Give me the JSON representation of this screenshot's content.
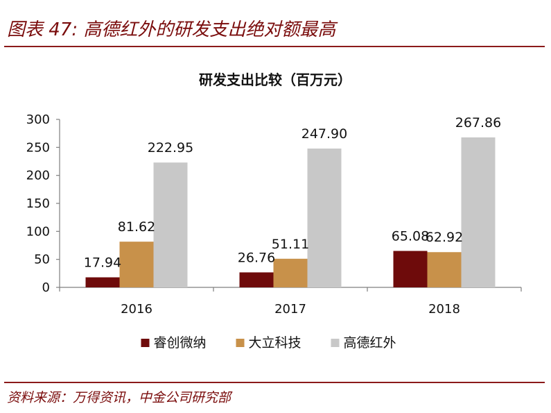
{
  "figure": {
    "title": "图表 47:  高德红外的研发支出绝对额最高",
    "source": "资料来源：万得资讯，中金公司研究部"
  },
  "chart_data": {
    "type": "bar",
    "title": "研发支出比较（百万元）",
    "categories": [
      "2016",
      "2017",
      "2018"
    ],
    "series": [
      {
        "name": "睿创微纳",
        "color": "#6e0b0b",
        "values": [
          17.94,
          26.76,
          65.08
        ]
      },
      {
        "name": "大立科技",
        "color": "#c8914a",
        "values": [
          81.62,
          51.11,
          62.92
        ]
      },
      {
        "name": "高德红外",
        "color": "#c8c8c8",
        "values": [
          222.95,
          247.9,
          267.86
        ]
      }
    ],
    "data_labels": [
      [
        "17.94",
        "26.76",
        "65.08"
      ],
      [
        "81.62",
        "51.11",
        "62.92"
      ],
      [
        "222.95",
        "247.90",
        "267.86"
      ]
    ],
    "ylim": [
      0,
      300
    ],
    "yticks": [
      "0",
      "50",
      "100",
      "150",
      "200",
      "250",
      "300"
    ],
    "xlabel": "",
    "ylabel": "",
    "grid": false,
    "legend_position": "bottom"
  }
}
